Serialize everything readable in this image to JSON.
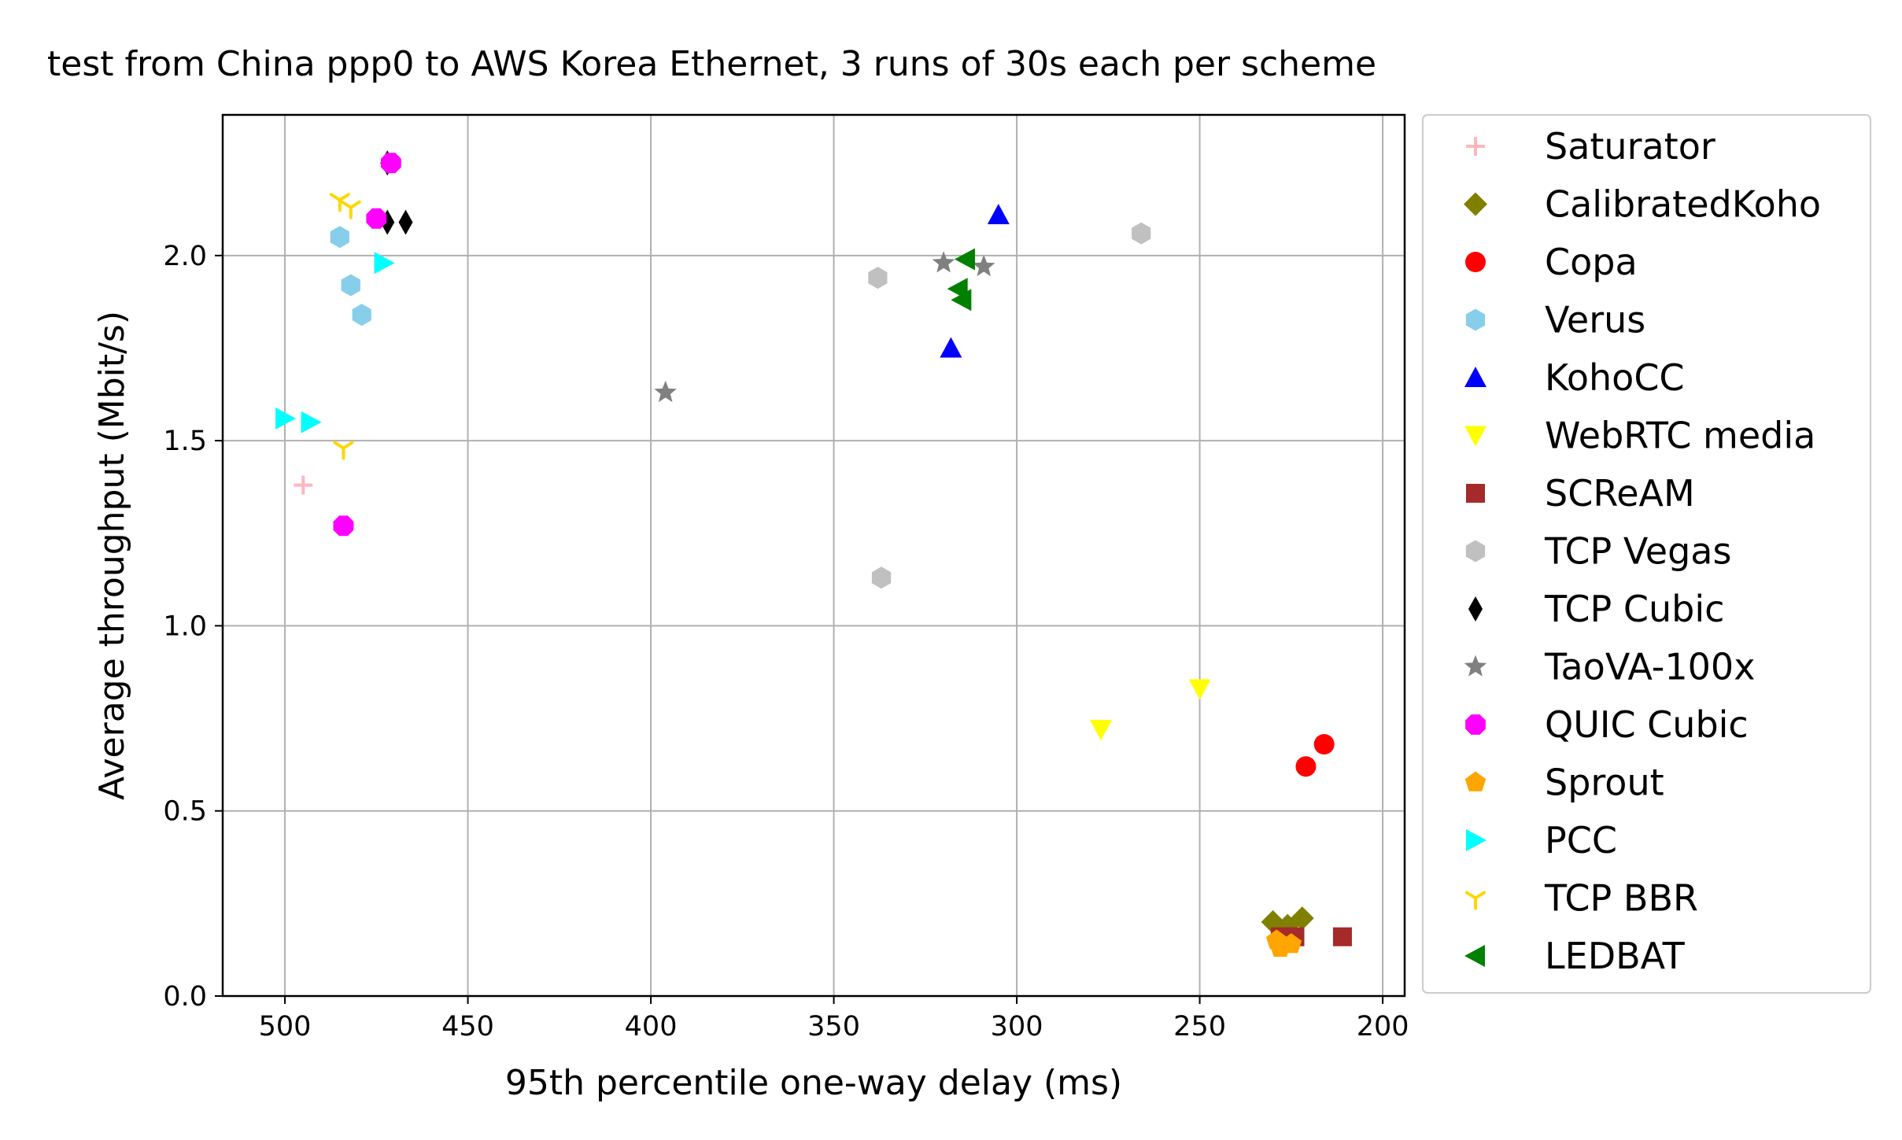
{
  "chart_data": {
    "type": "scatter",
    "title": "test from China ppp0 to AWS Korea Ethernet, 3 runs of 30s each per scheme",
    "xlabel": "95th percentile one-way delay (ms)",
    "ylabel": "Average throughput (Mbit/s)",
    "xlim": [
      517,
      194
    ],
    "ylim": [
      0,
      2.38
    ],
    "x_inverted": true,
    "grid": true,
    "legend_position": "outside-right",
    "xticks": [
      500,
      450,
      400,
      350,
      300,
      250,
      200
    ],
    "xtick_labels": [
      "500",
      "450",
      "400",
      "350",
      "300",
      "250",
      "200"
    ],
    "yticks": [
      0.0,
      0.5,
      1.0,
      1.5,
      2.0
    ],
    "ytick_labels": [
      "0.0",
      "0.5",
      "1.0",
      "1.5",
      "2.0"
    ],
    "series": [
      {
        "name": "Saturator",
        "marker": "plus",
        "color": "#ffb6c1",
        "points": [
          [
            495,
            1.38
          ]
        ]
      },
      {
        "name": "CalibratedKoho",
        "marker": "diamond",
        "color": "#808000",
        "points": [
          [
            230,
            0.2
          ],
          [
            226,
            0.19
          ],
          [
            222,
            0.21
          ]
        ]
      },
      {
        "name": "Copa",
        "marker": "circle",
        "color": "#ff0000",
        "points": [
          [
            216,
            0.68
          ],
          [
            221,
            0.62
          ]
        ]
      },
      {
        "name": "Verus",
        "marker": "hexagon",
        "color": "#87ceeb",
        "points": [
          [
            485,
            2.05
          ],
          [
            482,
            1.92
          ],
          [
            479,
            1.84
          ]
        ]
      },
      {
        "name": "KohoCC",
        "marker": "triangle-up",
        "color": "#0000ff",
        "points": [
          [
            305,
            2.11
          ],
          [
            318,
            1.75
          ]
        ]
      },
      {
        "name": "WebRTC media",
        "marker": "triangle-down",
        "color": "#ffff00",
        "points": [
          [
            250,
            0.83
          ],
          [
            277,
            0.72
          ]
        ]
      },
      {
        "name": "SCReAM",
        "marker": "square",
        "color": "#a52a2a",
        "points": [
          [
            211,
            0.16
          ],
          [
            224,
            0.16
          ],
          [
            228,
            0.16
          ]
        ]
      },
      {
        "name": "TCP Vegas",
        "marker": "hexagon",
        "color": "#c0c0c0",
        "points": [
          [
            266,
            2.06
          ],
          [
            338,
            1.94
          ],
          [
            337,
            1.13
          ]
        ]
      },
      {
        "name": "TCP Cubic",
        "marker": "thin-diamond",
        "color": "#000000",
        "points": [
          [
            472,
            2.25
          ],
          [
            467,
            2.09
          ],
          [
            472,
            2.09
          ]
        ]
      },
      {
        "name": "TaoVA-100x",
        "marker": "star",
        "color": "#808080",
        "points": [
          [
            396,
            1.63
          ],
          [
            320,
            1.98
          ],
          [
            309,
            1.97
          ]
        ]
      },
      {
        "name": "QUIC Cubic",
        "marker": "octagon",
        "color": "#ff00ff",
        "points": [
          [
            471,
            2.25
          ],
          [
            475,
            2.1
          ],
          [
            484,
            1.27
          ]
        ]
      },
      {
        "name": "Sprout",
        "marker": "pentagon",
        "color": "#ffa500",
        "points": [
          [
            229,
            0.15
          ],
          [
            225,
            0.14
          ],
          [
            228,
            0.13
          ]
        ]
      },
      {
        "name": "PCC",
        "marker": "triangle-right",
        "color": "#00ffff",
        "points": [
          [
            473,
            1.98
          ],
          [
            500,
            1.56
          ],
          [
            493,
            1.55
          ]
        ]
      },
      {
        "name": "TCP BBR",
        "marker": "tri-down",
        "color": "#ffd700",
        "points": [
          [
            485,
            2.15
          ],
          [
            482,
            2.13
          ],
          [
            484,
            1.48
          ]
        ]
      },
      {
        "name": "LEDBAT",
        "marker": "triangle-left",
        "color": "#008000",
        "points": [
          [
            314,
            1.99
          ],
          [
            316,
            1.91
          ],
          [
            315,
            1.88
          ]
        ]
      }
    ]
  }
}
